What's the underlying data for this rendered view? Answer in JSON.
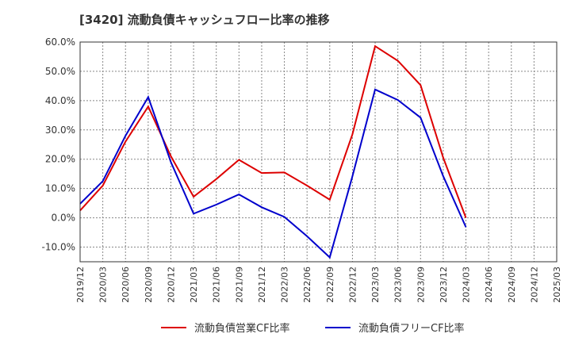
{
  "title": "[3420]  流動負債キャッシュフロー比率の推移",
  "chart_data": {
    "type": "line",
    "x": [
      "2019/12",
      "2020/03",
      "2020/06",
      "2020/09",
      "2020/12",
      "2021/03",
      "2021/06",
      "2021/09",
      "2021/12",
      "2022/03",
      "2022/06",
      "2022/09",
      "2022/12",
      "2023/03",
      "2023/06",
      "2023/09",
      "2023/12",
      "2024/03",
      "2024/06",
      "2024/09",
      "2024/12",
      "2025/03"
    ],
    "ylim": [
      -15,
      60
    ],
    "yticks": [
      "60.0%",
      "50.0%",
      "40.0%",
      "30.0%",
      "20.0%",
      "10.0%",
      "0.0%",
      "-10.0%"
    ],
    "ytick_values": [
      60,
      50,
      40,
      30,
      20,
      10,
      0,
      -10
    ],
    "grid": true,
    "legend_position": "bottom",
    "series": [
      {
        "name": "流動負債営業CF比率",
        "color": "#dd0000",
        "values": [
          2.5,
          11,
          26,
          38,
          21,
          7.2,
          13.2,
          19.8,
          15.3,
          15.5,
          11,
          6.2,
          28.5,
          58.6,
          53.6,
          45.3,
          20.5,
          0,
          null,
          null,
          null,
          null
        ]
      },
      {
        "name": "流動負債フリーCF比率",
        "color": "#0000cc",
        "values": [
          4.8,
          12.5,
          28,
          41.2,
          19,
          1.4,
          4.5,
          8,
          3.6,
          0.3,
          -6.3,
          -13.5,
          14.2,
          43.8,
          40.2,
          34.2,
          14.2,
          -3.2,
          null,
          null,
          null,
          null
        ]
      }
    ]
  }
}
